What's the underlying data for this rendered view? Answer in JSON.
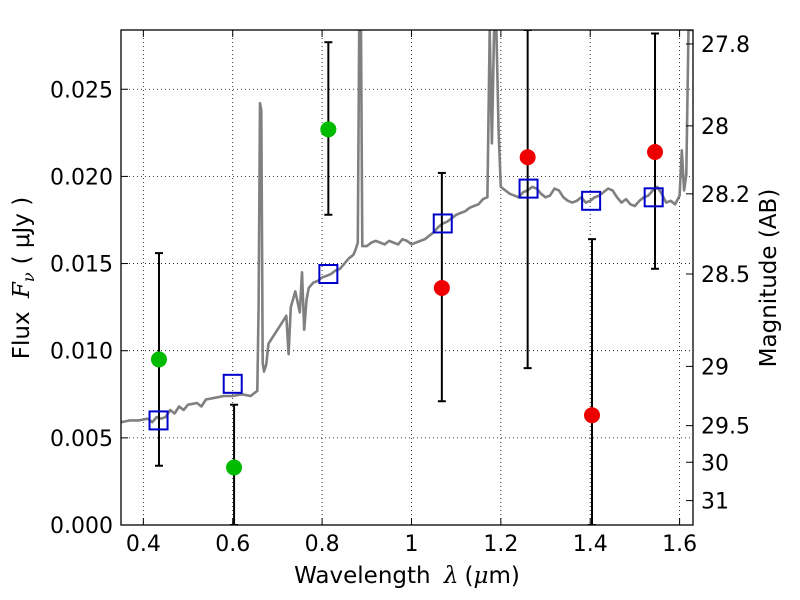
{
  "chart_data": {
    "type": "scatter",
    "xlabel": "Wavelength",
    "xlabel_math": "λ",
    "xlabel_unit_open": "(",
    "xlabel_unit_mu": "μ",
    "xlabel_unit_rest": "m)",
    "ylabel": "Flux",
    "ylabel_math": "F",
    "ylabel_sub": "ν",
    "ylabel_unit": "( μJy )",
    "y2label": "Magnitude (AB)",
    "xlim": [
      0.35,
      1.63
    ],
    "ylim": [
      0.0,
      0.0284
    ],
    "grid": true,
    "x_ticks": [
      0.4,
      0.6,
      0.8,
      1.0,
      1.2,
      1.4,
      1.6
    ],
    "x_tick_labels": [
      "0.4",
      "0.6",
      "0.8",
      "1",
      "1.2",
      "1.4",
      "1.6"
    ],
    "y_ticks": [
      0.0,
      0.005,
      0.01,
      0.015,
      0.02,
      0.025
    ],
    "y_tick_labels": [
      "0.000",
      "0.005",
      "0.010",
      "0.015",
      "0.020",
      "0.025"
    ],
    "y2_ticks": [
      {
        "label": "27.8",
        "flux": 0.0276
      },
      {
        "label": "28",
        "flux": 0.0229
      },
      {
        "label": "28.2",
        "flux": 0.019
      },
      {
        "label": "28.5",
        "flux": 0.0144
      },
      {
        "label": "29",
        "flux": 0.0091
      },
      {
        "label": "29.5",
        "flux": 0.0057
      },
      {
        "label": "30",
        "flux": 0.0036
      },
      {
        "label": "31",
        "flux": 0.0014
      }
    ],
    "model_spectrum": {
      "color": "#808080",
      "points": [
        [
          0.35,
          0.0059
        ],
        [
          0.37,
          0.006
        ],
        [
          0.39,
          0.006
        ],
        [
          0.41,
          0.0061
        ],
        [
          0.42,
          0.0059
        ],
        [
          0.43,
          0.0062
        ],
        [
          0.44,
          0.0061
        ],
        [
          0.45,
          0.0062
        ],
        [
          0.46,
          0.0066
        ],
        [
          0.47,
          0.0064
        ],
        [
          0.48,
          0.0068
        ],
        [
          0.49,
          0.0066
        ],
        [
          0.5,
          0.0069
        ],
        [
          0.52,
          0.007
        ],
        [
          0.53,
          0.0068
        ],
        [
          0.54,
          0.0072
        ],
        [
          0.56,
          0.0073
        ],
        [
          0.58,
          0.0074
        ],
        [
          0.6,
          0.0074
        ],
        [
          0.62,
          0.0075
        ],
        [
          0.64,
          0.0074
        ],
        [
          0.655,
          0.0077
        ],
        [
          0.658,
          0.0125
        ],
        [
          0.661,
          0.0242
        ],
        [
          0.664,
          0.0238
        ],
        [
          0.667,
          0.0093
        ],
        [
          0.67,
          0.0088
        ],
        [
          0.675,
          0.0092
        ],
        [
          0.68,
          0.0104
        ],
        [
          0.69,
          0.0108
        ],
        [
          0.7,
          0.0112
        ],
        [
          0.71,
          0.0116
        ],
        [
          0.72,
          0.012
        ],
        [
          0.725,
          0.0098
        ],
        [
          0.73,
          0.0125
        ],
        [
          0.74,
          0.0134
        ],
        [
          0.75,
          0.0122
        ],
        [
          0.755,
          0.0145
        ],
        [
          0.76,
          0.0112
        ],
        [
          0.765,
          0.0129
        ],
        [
          0.77,
          0.0136
        ],
        [
          0.78,
          0.0139
        ],
        [
          0.79,
          0.014
        ],
        [
          0.8,
          0.0142
        ],
        [
          0.81,
          0.0143
        ],
        [
          0.82,
          0.0144
        ],
        [
          0.83,
          0.0146
        ],
        [
          0.84,
          0.0147
        ],
        [
          0.85,
          0.015
        ],
        [
          0.86,
          0.0153
        ],
        [
          0.87,
          0.0155
        ],
        [
          0.875,
          0.0158
        ],
        [
          0.88,
          0.0162
        ],
        [
          0.883,
          0.0284
        ],
        [
          0.887,
          0.0284
        ],
        [
          0.89,
          0.016
        ],
        [
          0.9,
          0.016
        ],
        [
          0.91,
          0.0162
        ],
        [
          0.92,
          0.0163
        ],
        [
          0.93,
          0.0162
        ],
        [
          0.94,
          0.0161
        ],
        [
          0.95,
          0.0163
        ],
        [
          0.96,
          0.0162
        ],
        [
          0.97,
          0.0161
        ],
        [
          0.98,
          0.0164
        ],
        [
          0.99,
          0.0163
        ],
        [
          1.0,
          0.0161
        ],
        [
          1.01,
          0.0162
        ],
        [
          1.02,
          0.0163
        ],
        [
          1.03,
          0.0164
        ],
        [
          1.04,
          0.0166
        ],
        [
          1.05,
          0.0168
        ],
        [
          1.06,
          0.0171
        ],
        [
          1.07,
          0.0173
        ],
        [
          1.08,
          0.0174
        ],
        [
          1.09,
          0.0176
        ],
        [
          1.1,
          0.0178
        ],
        [
          1.11,
          0.0179
        ],
        [
          1.12,
          0.018
        ],
        [
          1.13,
          0.0182
        ],
        [
          1.14,
          0.0183
        ],
        [
          1.15,
          0.0184
        ],
        [
          1.16,
          0.0187
        ],
        [
          1.17,
          0.0188
        ],
        [
          1.175,
          0.0284
        ],
        [
          1.18,
          0.0219
        ],
        [
          1.185,
          0.0284
        ],
        [
          1.19,
          0.0284
        ],
        [
          1.195,
          0.0226
        ],
        [
          1.2,
          0.0194
        ],
        [
          1.21,
          0.0192
        ],
        [
          1.22,
          0.019
        ],
        [
          1.23,
          0.0189
        ],
        [
          1.24,
          0.0188
        ],
        [
          1.25,
          0.0191
        ],
        [
          1.26,
          0.0192
        ],
        [
          1.27,
          0.0194
        ],
        [
          1.28,
          0.0193
        ],
        [
          1.29,
          0.019
        ],
        [
          1.3,
          0.0188
        ],
        [
          1.31,
          0.0189
        ],
        [
          1.32,
          0.0193
        ],
        [
          1.33,
          0.0192
        ],
        [
          1.34,
          0.0188
        ],
        [
          1.35,
          0.0186
        ],
        [
          1.36,
          0.0185
        ],
        [
          1.37,
          0.0186
        ],
        [
          1.38,
          0.0188
        ],
        [
          1.39,
          0.0185
        ],
        [
          1.4,
          0.0186
        ],
        [
          1.41,
          0.0188
        ],
        [
          1.42,
          0.0189
        ],
        [
          1.43,
          0.0191
        ],
        [
          1.44,
          0.0193
        ],
        [
          1.45,
          0.0192
        ],
        [
          1.46,
          0.0188
        ],
        [
          1.47,
          0.0185
        ],
        [
          1.48,
          0.0187
        ],
        [
          1.49,
          0.0184
        ],
        [
          1.5,
          0.0183
        ],
        [
          1.51,
          0.0186
        ],
        [
          1.52,
          0.0188
        ],
        [
          1.53,
          0.0189
        ],
        [
          1.54,
          0.0192
        ],
        [
          1.55,
          0.0194
        ],
        [
          1.56,
          0.019
        ],
        [
          1.57,
          0.0185
        ],
        [
          1.58,
          0.0186
        ],
        [
          1.59,
          0.0184
        ],
        [
          1.6,
          0.0189
        ],
        [
          1.605,
          0.0215
        ],
        [
          1.61,
          0.0192
        ],
        [
          1.615,
          0.0201
        ],
        [
          1.62,
          0.0284
        ],
        [
          1.63,
          0.0284
        ]
      ]
    },
    "model_photometry": {
      "marker": "open-square",
      "color": "#0000cc",
      "points": [
        [
          0.434,
          0.006
        ],
        [
          0.6,
          0.0081
        ],
        [
          0.814,
          0.0144
        ],
        [
          1.07,
          0.0173
        ],
        [
          1.262,
          0.0193
        ],
        [
          1.402,
          0.0186
        ],
        [
          1.542,
          0.0188
        ]
      ]
    },
    "detections": {
      "marker": "filled-circle",
      "color": "#00bb00",
      "points": [
        {
          "x": 0.435,
          "y": 0.0095,
          "yerr_low": 0.0034,
          "yerr_high": 0.0156
        },
        {
          "x": 0.603,
          "y": 0.0033,
          "yerr_low": 0.0,
          "yerr_high": 0.0069
        },
        {
          "x": 0.814,
          "y": 0.0227,
          "yerr_low": 0.0178,
          "yerr_high": 0.0277
        }
      ]
    },
    "nondetections": {
      "marker": "filled-circle",
      "color": "#ee0000",
      "points": [
        {
          "x": 1.068,
          "y": 0.0136,
          "yerr_low": 0.0071,
          "yerr_high": 0.0202
        },
        {
          "x": 1.26,
          "y": 0.0211,
          "yerr_low": 0.009,
          "yerr_high": 0.0284
        },
        {
          "x": 1.404,
          "y": 0.0063,
          "yerr_low": 0.0,
          "yerr_high": 0.0164
        },
        {
          "x": 1.545,
          "y": 0.0214,
          "yerr_low": 0.0147,
          "yerr_high": 0.0282
        }
      ]
    }
  }
}
